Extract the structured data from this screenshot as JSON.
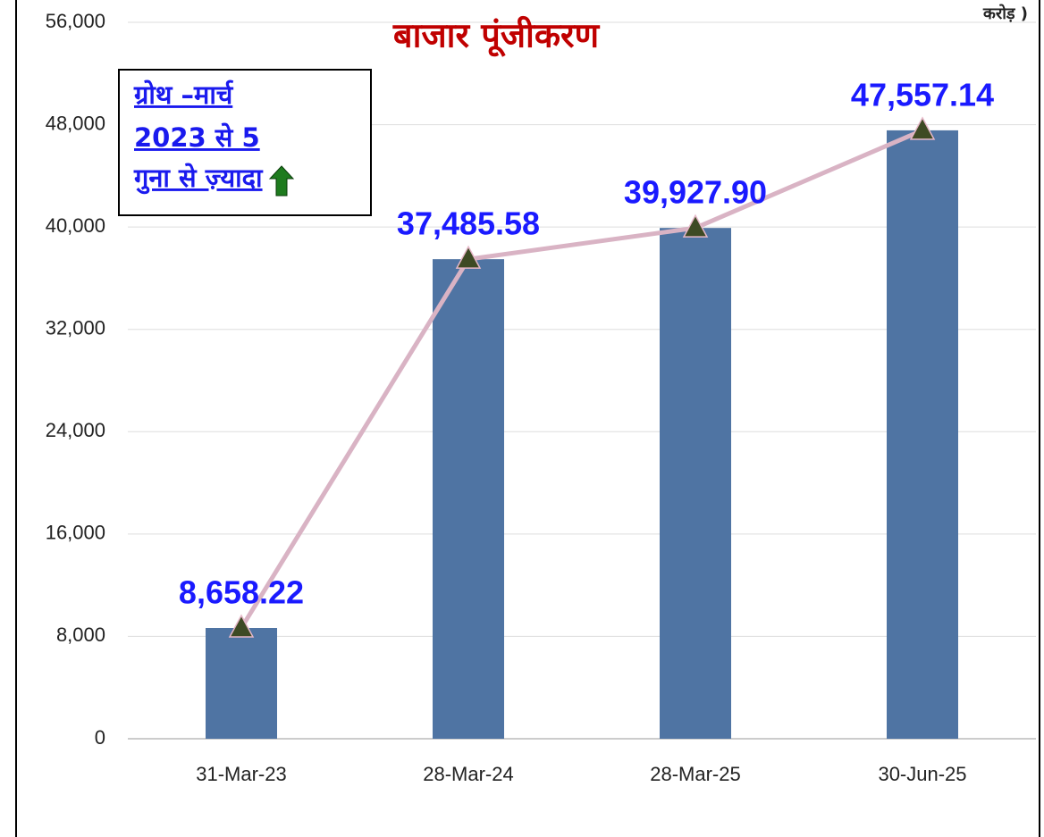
{
  "chart_data": {
    "type": "bar",
    "title": "बाजार पूंजीकरण",
    "unit_note": "करोड़ )",
    "annotation_box": {
      "lines": [
        "ग्रोथ –मार्च",
        "2023 से 5",
        "गुना से ज़्यादा"
      ]
    },
    "categories": [
      "31-Mar-23",
      "28-Mar-24",
      "28-Mar-25",
      "30-Jun-25"
    ],
    "series": [
      {
        "type": "bar",
        "color": "#4f74a3",
        "values": [
          8658.22,
          37485.58,
          39927.9,
          47557.14
        ]
      },
      {
        "type": "line",
        "color": "#d9b3c4",
        "marker": "triangle",
        "marker_color": "#3e4a24",
        "values": [
          8658.22,
          37485.58,
          39927.9,
          47557.14
        ],
        "value_labels": [
          "8,658.22",
          "37,485.58",
          "39,927.90",
          "47,557.14"
        ]
      }
    ],
    "ylim": [
      0,
      56000
    ],
    "yticks": [
      0,
      {
        "value": 8000,
        "label": "8,000"
      },
      {
        "value": 16000,
        "label": "16,000"
      },
      {
        "value": 24000,
        "label": "24,000"
      },
      {
        "value": 32000,
        "label": "32,000"
      },
      {
        "value": 40000,
        "label": "40,000"
      },
      {
        "value": 48000,
        "label": "48,000"
      },
      {
        "value": 56000,
        "label": "56,000"
      }
    ],
    "grid": true
  }
}
